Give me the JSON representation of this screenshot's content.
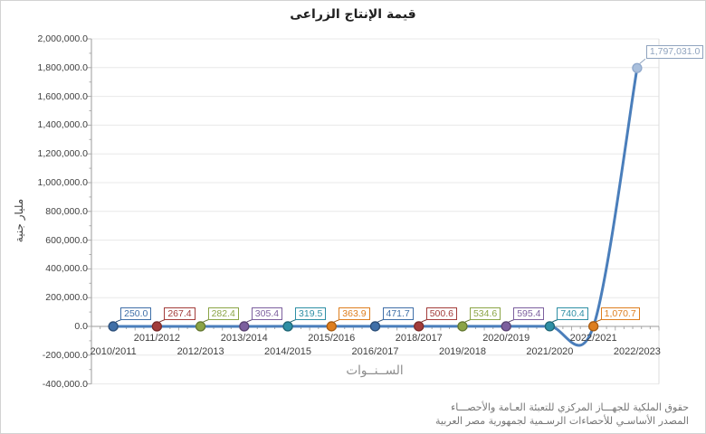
{
  "window": {
    "background": "#ffffff",
    "border_color": "#d2d2d2"
  },
  "chart_data": {
    "type": "line",
    "smooth": true,
    "grid": "horizontal every 200,000, light gray",
    "legend": "none",
    "title": "قيمة الإنتاج الزراعى",
    "xlabel": "الســنــوات",
    "ylabel": "مليار جنية",
    "ylim": [
      -400000,
      2000000
    ],
    "ytick_interval": 200000,
    "ytick_labels_top_down": [
      "2,000,000.0",
      "1,800,000.0",
      "1,600,000.0",
      "1,400,000.0",
      "1,200,000.0",
      "1,000,000.0",
      "800,000.0",
      "600,000.0",
      "400,000.0",
      "200,000.0",
      "0.0",
      "-200,000.0",
      "-400,000.0"
    ],
    "categories": [
      "2010/2011",
      "2011/2012",
      "2012/2013",
      "2013/2014",
      "2014/2015",
      "2015/2016",
      "2016/2017",
      "2018/2017",
      "2019/2018",
      "2020/2019",
      "2021/2020",
      "2022/2021",
      "2022/2023"
    ],
    "values": [
      250.0,
      267.4,
      282.4,
      305.4,
      319.5,
      363.9,
      471.7,
      500.6,
      534.6,
      595.4,
      740.4,
      1070.7,
      1797031.0
    ],
    "point_labels": [
      "250.0",
      "267.4",
      "282.4",
      "305.4",
      "319.5",
      "363.9",
      "471.7",
      "500.6",
      "534.6",
      "595.4",
      "740.4",
      "1,070.7",
      "1,797,031.0"
    ]
  },
  "style": {
    "line_color": "#4a7ebb",
    "marker_palette": [
      "#3f6fa8",
      "#a33c3a",
      "#8ba446",
      "#7c5f9e",
      "#2e8fa5",
      "#de7e1e"
    ],
    "marker_stroke_palette": [
      "#2b4e79",
      "#7a2b29",
      "#647831",
      "#594372",
      "#1f6675",
      "#a85c12"
    ],
    "last_point_fill": "#a9bfdc",
    "last_point_stroke": "#8fa8cb",
    "last_point_label_color": "#8fa3be",
    "grid_color": "#e8e8e8",
    "plot_border_color": "#dcdcdc",
    "axis_color": "#9b9b9b",
    "tick_color": "#ababab",
    "tick_label_color": "#3f3f3f",
    "title_color": "#1f1f1f",
    "x_axis_title_color": "#8c8c8c",
    "footer_color": "#757575"
  },
  "footer": {
    "line1": "حقوق الملكية للجهـــاز المركزي للتعبئة العـامة والأحصـــاء",
    "line2": "المصدر الأساسـي للأحصاءات الرسـمية لجمهورية مصر العربية"
  }
}
